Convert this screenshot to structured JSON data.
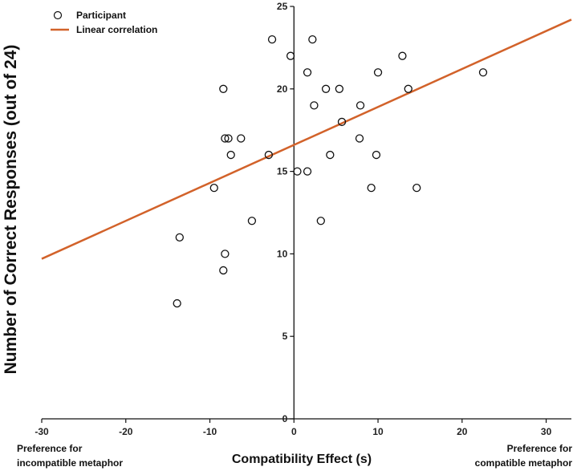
{
  "chart_data": {
    "type": "scatter",
    "xlabel": "Compatibility Effect (s)",
    "ylabel": "Number of Correct Responses (out of 24)",
    "xlim": [
      -30,
      33
    ],
    "ylim": [
      0,
      25
    ],
    "x_ticks": [
      -30,
      -20,
      -10,
      0,
      10,
      20,
      30
    ],
    "y_ticks": [
      0,
      5,
      10,
      15,
      20,
      25
    ],
    "grid": false,
    "legend_position": "top-left",
    "series": [
      {
        "name": "Participant",
        "marker": "open-circle",
        "points": [
          {
            "x": -13.9,
            "y": 7
          },
          {
            "x": -13.6,
            "y": 11
          },
          {
            "x": -8.4,
            "y": 9
          },
          {
            "x": -8.2,
            "y": 10
          },
          {
            "x": -5.0,
            "y": 12
          },
          {
            "x": -9.5,
            "y": 14
          },
          {
            "x": -3.0,
            "y": 16
          },
          {
            "x": -7.5,
            "y": 16
          },
          {
            "x": -8.2,
            "y": 17
          },
          {
            "x": -7.8,
            "y": 17
          },
          {
            "x": -6.3,
            "y": 17
          },
          {
            "x": -8.4,
            "y": 20
          },
          {
            "x": -2.6,
            "y": 23
          },
          {
            "x": -0.4,
            "y": 22
          },
          {
            "x": 0.4,
            "y": 15
          },
          {
            "x": 1.6,
            "y": 15
          },
          {
            "x": 3.2,
            "y": 12
          },
          {
            "x": 1.6,
            "y": 21
          },
          {
            "x": 2.2,
            "y": 23
          },
          {
            "x": 2.4,
            "y": 19
          },
          {
            "x": 3.8,
            "y": 20
          },
          {
            "x": 5.4,
            "y": 20
          },
          {
            "x": 4.3,
            "y": 16
          },
          {
            "x": 5.7,
            "y": 18
          },
          {
            "x": 7.9,
            "y": 19
          },
          {
            "x": 7.8,
            "y": 17
          },
          {
            "x": 9.2,
            "y": 14
          },
          {
            "x": 9.8,
            "y": 16
          },
          {
            "x": 10.0,
            "y": 21
          },
          {
            "x": 12.9,
            "y": 22
          },
          {
            "x": 13.6,
            "y": 20
          },
          {
            "x": 14.6,
            "y": 14
          },
          {
            "x": 22.5,
            "y": 21
          }
        ]
      },
      {
        "name": "Linear correlation",
        "line": true,
        "color": "#d2622a",
        "points": [
          {
            "x": -30,
            "y": 9.7
          },
          {
            "x": 33,
            "y": 24.2
          }
        ]
      }
    ],
    "annotations": {
      "left": [
        "Preference for",
        "incompatible metaphor"
      ],
      "right": [
        "Preference for",
        "compatible metaphor"
      ]
    }
  }
}
